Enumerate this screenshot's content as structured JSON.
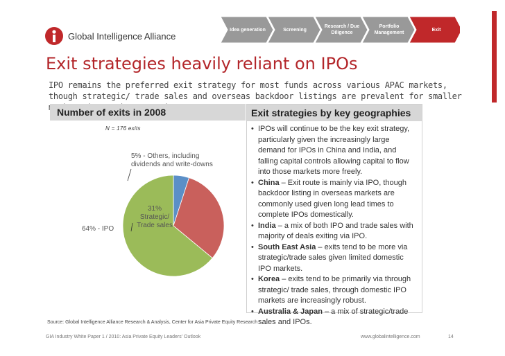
{
  "header": {
    "logo_text": "Global Intelligence Alliance",
    "process_steps": [
      {
        "label": "Idea generation",
        "color": "#999999"
      },
      {
        "label": "Screening",
        "color": "#999999"
      },
      {
        "label": "Research / Due Diligence",
        "color": "#999999"
      },
      {
        "label": "Portfolio Management",
        "color": "#999999"
      },
      {
        "label": "Exit",
        "color": "#c0282a"
      }
    ]
  },
  "slide": {
    "title": "Exit strategies heavily reliant on IPOs",
    "subtitle": "IPO remains the preferred exit strategy for most funds across various APAC markets, though strategic/ trade sales and overseas backdoor listings are prevalent for smaller markets in South East Asia."
  },
  "left_panel": {
    "heading": "Number of exits in 2008",
    "n_label": "N = 176 exits"
  },
  "chart_data": {
    "type": "pie",
    "title": "Number of exits in 2008",
    "slices": [
      {
        "label": "5% - Others, including dividends and write-downs",
        "value": 5,
        "color": "#5b8fc7"
      },
      {
        "label": "31% Strategic/ Trade sales",
        "value": 31,
        "color": "#c9605c"
      },
      {
        "label": "64% - IPO",
        "value": 64,
        "color": "#9bbb59"
      }
    ],
    "annotation": "N = 176 exits"
  },
  "pie_labels": {
    "others_line1": "5% - Others, including",
    "others_line2": "dividends and write-downs",
    "strategic_line1": "31%",
    "strategic_line2": "Strategic/",
    "strategic_line3": "Trade sales",
    "ipo": "64% - IPO"
  },
  "right_panel": {
    "heading": "Exit strategies by key geographies",
    "bullets": [
      {
        "bold": "",
        "text": "IPOs will continue to be the key exit strategy, particularly given the increasingly large demand for IPOs in China and India, and falling capital controls allowing capital to flow into those markets more freely."
      },
      {
        "bold": "China",
        "text": " – Exit route is mainly via IPO, though backdoor listing in overseas markets are commonly used given long lead times to complete IPOs domestically."
      },
      {
        "bold": "India",
        "text": " – a mix of both IPO and trade sales with majority of deals exiting via IPO."
      },
      {
        "bold": "South East Asia",
        "text": " – exits tend to be more via strategic/trade sales given limited domestic IPO markets."
      },
      {
        "bold": "Korea",
        "text": " – exits tend to be primarily via through strategic/ trade sales, through domestic IPO markets are increasingly robust."
      },
      {
        "bold": "Australia & Japan",
        "text": " – a mix of strategic/trade sales and IPOs."
      }
    ]
  },
  "footer": {
    "source": "Source: Global Intelligence Alliance Research & Analysis, Center for Asia Private Equity Research",
    "left": "GIA Industry White Paper 1 / 2010: Asia Private Equity Leaders' Outlook",
    "right": "www.globalintelligence.com",
    "page": "14"
  }
}
